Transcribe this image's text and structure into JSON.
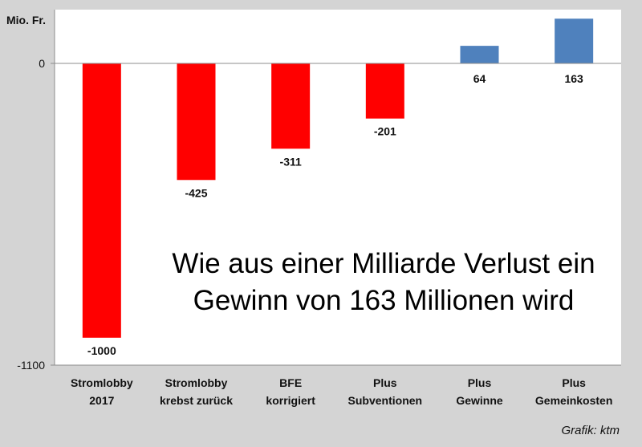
{
  "chart_data": {
    "type": "bar",
    "title": "Wie aus einer Milliarde Verlust ein Gewinn von 163 Millionen wird",
    "title_lines": [
      "Wie aus einer Milliarde Verlust ein",
      "Gewinn von 163 Millionen wird"
    ],
    "ylabel": "Mio. Fr.",
    "xlabel": "",
    "ylim": [
      -1100,
      163
    ],
    "yticks": [
      0,
      -1100
    ],
    "grid": false,
    "legend": "none",
    "categories": [
      [
        "Stromlobby",
        "2017"
      ],
      [
        "Stromlobby",
        "krebst zurück"
      ],
      [
        "BFE",
        "korrigiert"
      ],
      [
        "Plus",
        "Subventionen"
      ],
      [
        "Plus",
        "Gewinne"
      ],
      [
        "Plus",
        "Gemeinkosten"
      ]
    ],
    "values": [
      -1000,
      -425,
      -311,
      -201,
      64,
      163
    ],
    "data_labels": [
      "-1000",
      "-425",
      "-311",
      "-201",
      "64",
      "163"
    ],
    "colors": {
      "negative": "#ff0000",
      "positive": "#4f81bd",
      "plot_background": "#ffffff",
      "page_background": "#d4d4d4",
      "axis": "#8c8c8c"
    }
  },
  "credit": "Grafik: ktm"
}
